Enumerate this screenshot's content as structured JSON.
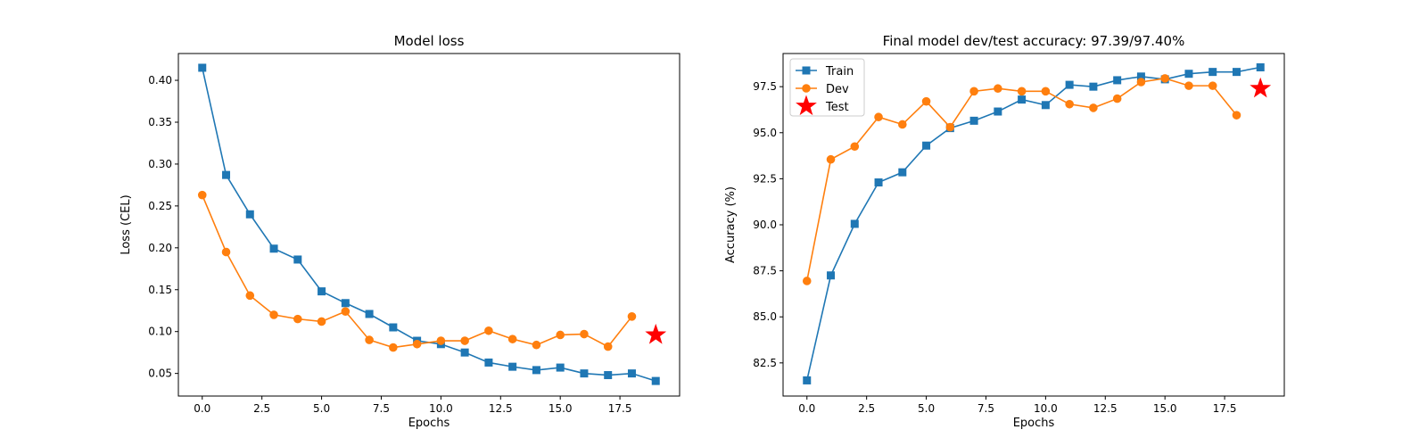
{
  "chart_data": [
    {
      "type": "line",
      "title": "Model loss",
      "xlabel": "Epochs",
      "ylabel": "Loss (CEL)",
      "xlim": [
        -1.0,
        20.0
      ],
      "ylim": [
        0.023,
        0.432
      ],
      "xticks": [
        0.0,
        2.5,
        5.0,
        7.5,
        10.0,
        12.5,
        15.0,
        17.5
      ],
      "xtick_labels": [
        "0.0",
        "2.5",
        "5.0",
        "7.5",
        "10.0",
        "12.5",
        "15.0",
        "17.5"
      ],
      "yticks": [
        0.05,
        0.1,
        0.15,
        0.2,
        0.25,
        0.3,
        0.35,
        0.4
      ],
      "ytick_labels": [
        "0.05",
        "0.10",
        "0.15",
        "0.20",
        "0.25",
        "0.30",
        "0.35",
        "0.40"
      ],
      "grid": false,
      "legend": null,
      "series": [
        {
          "marker": "square",
          "color": "#1f77b4",
          "x": [
            0,
            1,
            2,
            3,
            4,
            5,
            6,
            7,
            8,
            9,
            10,
            11,
            12,
            13,
            14,
            15,
            16,
            17,
            18,
            19
          ],
          "values": [
            0.415,
            0.287,
            0.24,
            0.199,
            0.186,
            0.148,
            0.134,
            0.121,
            0.105,
            0.089,
            0.085,
            0.075,
            0.063,
            0.058,
            0.054,
            0.057,
            0.05,
            0.048,
            0.05,
            0.041
          ]
        },
        {
          "marker": "circle",
          "color": "#ff7f0e",
          "x": [
            0,
            1,
            2,
            3,
            4,
            5,
            6,
            7,
            8,
            9,
            10,
            11,
            12,
            13,
            14,
            15,
            16,
            17,
            18
          ],
          "values": [
            0.263,
            0.195,
            0.143,
            0.12,
            0.115,
            0.112,
            0.124,
            0.09,
            0.081,
            0.085,
            0.089,
            0.089,
            0.101,
            0.091,
            0.084,
            0.096,
            0.097,
            0.082,
            0.118
          ]
        },
        {
          "marker": "star",
          "color": "#ff0000",
          "x": [
            19
          ],
          "values": [
            0.096
          ]
        }
      ]
    },
    {
      "type": "line",
      "title": "Final model dev/test accuracy: 97.39/97.40%",
      "xlabel": "Epochs",
      "ylabel": "Accuracy (%)",
      "xlim": [
        -1.0,
        20.0
      ],
      "ylim": [
        80.7,
        99.3
      ],
      "xticks": [
        0.0,
        2.5,
        5.0,
        7.5,
        10.0,
        12.5,
        15.0,
        17.5
      ],
      "xtick_labels": [
        "0.0",
        "2.5",
        "5.0",
        "7.5",
        "10.0",
        "12.5",
        "15.0",
        "17.5"
      ],
      "yticks": [
        82.5,
        85.0,
        87.5,
        90.0,
        92.5,
        95.0,
        97.5
      ],
      "ytick_labels": [
        "82.5",
        "85.0",
        "87.5",
        "90.0",
        "92.5",
        "95.0",
        "97.5"
      ],
      "grid": false,
      "legend": "top-left",
      "series": [
        {
          "name": "Train",
          "marker": "square",
          "color": "#1f77b4",
          "x": [
            0,
            1,
            2,
            3,
            4,
            5,
            6,
            7,
            8,
            9,
            10,
            11,
            12,
            13,
            14,
            15,
            16,
            17,
            18,
            19
          ],
          "values": [
            81.55,
            87.25,
            90.05,
            92.3,
            92.85,
            94.3,
            95.25,
            95.65,
            96.15,
            96.8,
            96.5,
            97.6,
            97.5,
            97.85,
            98.05,
            97.9,
            98.2,
            98.3,
            98.3,
            98.55
          ]
        },
        {
          "name": "Dev",
          "marker": "circle",
          "color": "#ff7f0e",
          "x": [
            0,
            1,
            2,
            3,
            4,
            5,
            6,
            7,
            8,
            9,
            10,
            11,
            12,
            13,
            14,
            15,
            16,
            17,
            18
          ],
          "values": [
            86.95,
            93.55,
            94.25,
            95.85,
            95.45,
            96.7,
            95.3,
            97.25,
            97.4,
            97.25,
            97.25,
            96.55,
            96.35,
            96.85,
            97.75,
            97.95,
            97.55,
            97.55,
            95.95
          ]
        },
        {
          "name": "Test",
          "marker": "star",
          "color": "#ff0000",
          "x": [
            19
          ],
          "values": [
            97.4
          ]
        }
      ]
    }
  ]
}
